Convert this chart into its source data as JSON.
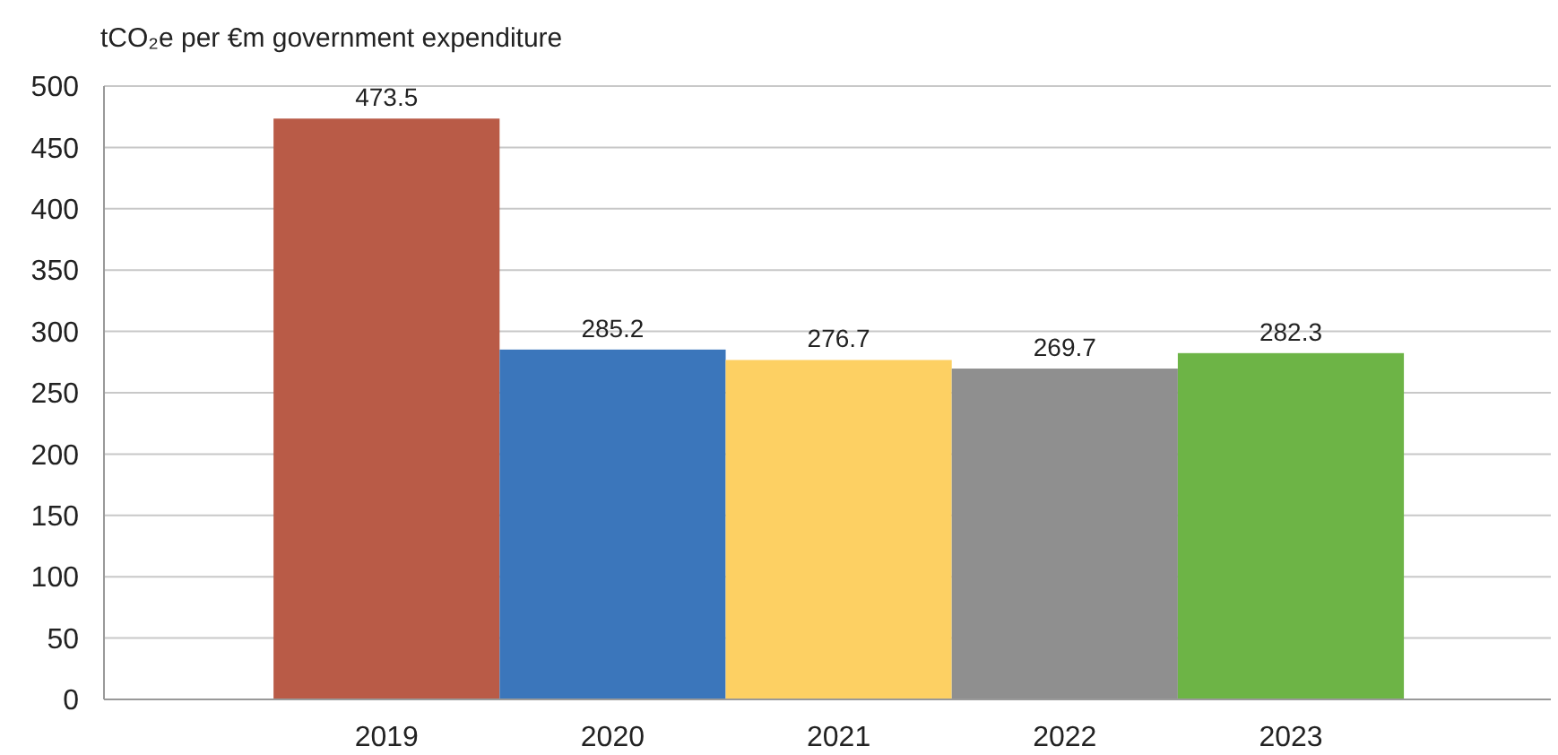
{
  "chart_data": {
    "type": "bar",
    "ylabel": "tCO₂e per €m government expenditure",
    "categories": [
      "2019",
      "2020",
      "2021",
      "2022",
      "2023"
    ],
    "values": [
      473.5,
      285.2,
      276.7,
      269.7,
      282.3
    ],
    "colors": [
      "#b95b47",
      "#3b76bb",
      "#fdd063",
      "#8f8f8f",
      "#6db446"
    ],
    "ylim": [
      0,
      500
    ],
    "yticks": [
      0,
      50,
      100,
      150,
      200,
      250,
      300,
      350,
      400,
      450,
      500
    ],
    "grid": "y",
    "data_labels": true
  }
}
